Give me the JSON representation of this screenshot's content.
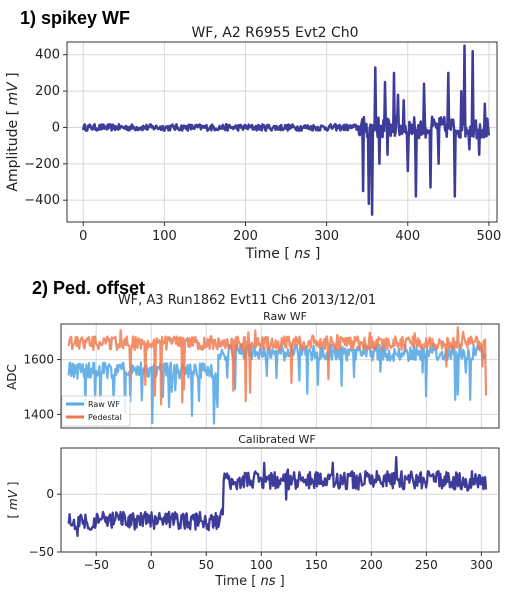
{
  "panel_labels": {
    "first": "1) spikey WF",
    "second": "2) Ped. offset"
  },
  "colors": {
    "wf": "#3d3d99",
    "raw": "#5aa9e6",
    "pedestal": "#f07a50",
    "grid": "#d8d8d8"
  },
  "chart_data": [
    {
      "type": "line",
      "title": "WF, A2 R6955 Evt2 Ch0",
      "xlabel_main": "Time [ ",
      "xlabel_unit": "ns",
      "xlabel_end": " ]",
      "ylabel_main": "Amplitude [ ",
      "ylabel_unit": "mV",
      "ylabel_end": " ]",
      "xlim": [
        -20,
        510
      ],
      "ylim": [
        -520,
        470
      ],
      "xticks": [
        0,
        100,
        200,
        300,
        400,
        500
      ],
      "yticks": [
        -400,
        -200,
        0,
        200,
        400
      ],
      "grid": true,
      "series": [
        {
          "x_range": [
            0,
            500
          ],
          "noise_before_340": 18,
          "spikes": [
            [
              345,
              -350
            ],
            [
              352,
              -420
            ],
            [
              356,
              -480
            ],
            [
              360,
              330
            ],
            [
              365,
              -200
            ],
            [
              372,
              250
            ],
            [
              375,
              -150
            ],
            [
              383,
              300
            ],
            [
              388,
              180
            ],
            [
              395,
              150
            ],
            [
              400,
              -240
            ],
            [
              410,
              -380
            ],
            [
              420,
              240
            ],
            [
              428,
              -330
            ],
            [
              438,
              -200
            ],
            [
              450,
              300
            ],
            [
              458,
              -380
            ],
            [
              466,
              200
            ],
            [
              470,
              450
            ],
            [
              476,
              -120
            ],
            [
              480,
              420
            ],
            [
              488,
              -150
            ],
            [
              495,
              130
            ]
          ]
        }
      ]
    },
    {
      "type": "line",
      "suptitle": "WF, A3 Run1862 Evt11 Ch6 2013/12/01",
      "title": "Raw WF",
      "ylabel": "ADC",
      "xlim": [
        -82,
        316
      ],
      "ylim": [
        1350,
        1730
      ],
      "yticks": [
        1400,
        1600
      ],
      "grid": true,
      "legend": "lower-left",
      "series": [
        {
          "name": "Raw WF",
          "baseline_before_60": 1560,
          "baseline_after_60": 1625,
          "x_range": [
            -75,
            305
          ]
        },
        {
          "name": "Pedestal",
          "baseline": 1660,
          "x_range": [
            -75,
            305
          ]
        }
      ]
    },
    {
      "type": "line",
      "title": "Calibrated WF",
      "xlabel_main": "Time [ ",
      "xlabel_unit": "ns",
      "xlabel_end": " ]",
      "ylabel_main": "[ ",
      "ylabel_unit": "mV",
      "ylabel_end": " ]",
      "xlim": [
        -82,
        316
      ],
      "ylim": [
        -50,
        40
      ],
      "xticks": [
        -50,
        0,
        50,
        100,
        150,
        200,
        250,
        300
      ],
      "yticks": [
        -50,
        0
      ],
      "grid": true,
      "series": [
        {
          "x_range": [
            -75,
            305
          ],
          "level_before_65": -23,
          "level_after_65": 12
        }
      ]
    }
  ]
}
